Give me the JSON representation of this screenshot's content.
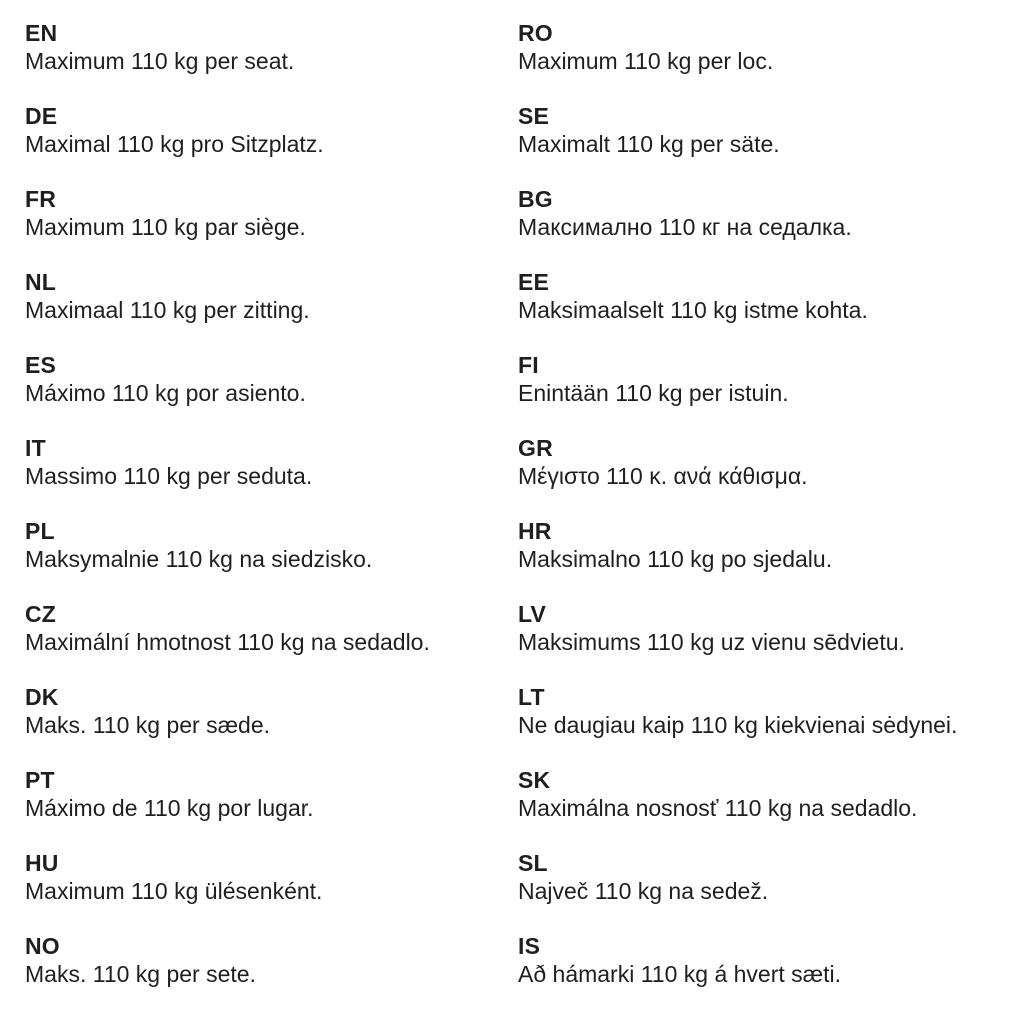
{
  "page": {
    "background_color": "#ffffff",
    "text_color": "#1f1f1f",
    "description": "Multilingual maximum seat load notice, two columns of language-coded sentences"
  },
  "columns": {
    "left": [
      {
        "code": "EN",
        "text": "Maximum 110 kg per seat."
      },
      {
        "code": "DE",
        "text": "Maximal 110 kg pro Sitzplatz."
      },
      {
        "code": "FR",
        "text": "Maximum 110 kg par siège."
      },
      {
        "code": "NL",
        "text": "Maximaal 110 kg per zitting."
      },
      {
        "code": "ES",
        "text": "Máximo 110 kg por asiento."
      },
      {
        "code": "IT",
        "text": "Massimo 110 kg per seduta."
      },
      {
        "code": "PL",
        "text": "Maksymalnie 110 kg na siedzisko."
      },
      {
        "code": "CZ",
        "text": "Maximální hmotnost 110 kg na sedadlo."
      },
      {
        "code": "DK",
        "text": "Maks. 110 kg per sæde."
      },
      {
        "code": "PT",
        "text": "Máximo de 110 kg por lugar."
      },
      {
        "code": "HU",
        "text": "Maximum 110 kg ülésenként."
      },
      {
        "code": "NO",
        "text": "Maks. 110 kg per sete."
      }
    ],
    "right": [
      {
        "code": "RO",
        "text": "Maximum 110 kg per loc."
      },
      {
        "code": "SE",
        "text": "Maximalt 110 kg per säte."
      },
      {
        "code": "BG",
        "text": "Максимално 110 кг на седалка."
      },
      {
        "code": "EE",
        "text": "Maksimaalselt 110 kg istme kohta."
      },
      {
        "code": "FI",
        "text": "Enintään 110 kg per istuin."
      },
      {
        "code": "GR",
        "text": "Μέγιστο 110 κ. ανά κάθισμα."
      },
      {
        "code": "HR",
        "text": "Maksimalno 110 kg po sjedalu."
      },
      {
        "code": "LV",
        "text": "Maksimums 110 kg uz vienu sēdvietu."
      },
      {
        "code": "LT",
        "text": "Ne daugiau kaip 110 kg kiekvienai sėdynei."
      },
      {
        "code": "SK",
        "text": "Maximálna nosnosť 110 kg na sedadlo."
      },
      {
        "code": "SL",
        "text": "Največ 110 kg na sedež."
      },
      {
        "code": "IS",
        "text": "Að hámarki 110 kg á hvert sæti."
      }
    ]
  }
}
